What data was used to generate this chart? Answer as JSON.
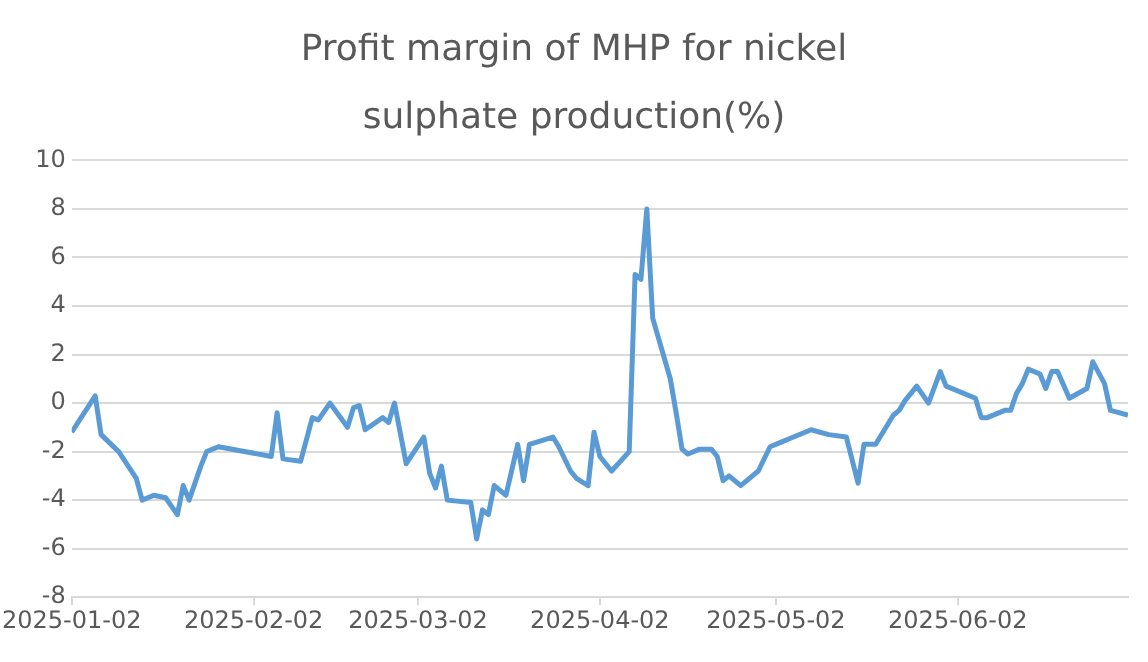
{
  "chart_data": {
    "type": "line",
    "title": "Profit margin of MHP for nickel sulphate production(%)",
    "x": [
      "2025-01-02",
      "2025-01-06",
      "2025-01-07",
      "2025-01-10",
      "2025-01-13",
      "2025-01-14",
      "2025-01-16",
      "2025-01-18",
      "2025-01-20",
      "2025-01-21",
      "2025-01-22",
      "2025-01-24",
      "2025-01-25",
      "2025-01-27",
      "2025-02-05",
      "2025-02-06",
      "2025-02-07",
      "2025-02-10",
      "2025-02-12",
      "2025-02-13",
      "2025-02-15",
      "2025-02-18",
      "2025-02-19",
      "2025-02-20",
      "2025-02-21",
      "2025-02-24",
      "2025-02-25",
      "2025-02-26",
      "2025-02-28",
      "2025-03-03",
      "2025-03-04",
      "2025-03-05",
      "2025-03-06",
      "2025-03-07",
      "2025-03-11",
      "2025-03-12",
      "2025-03-13",
      "2025-03-14",
      "2025-03-15",
      "2025-03-17",
      "2025-03-19",
      "2025-03-20",
      "2025-03-21",
      "2025-03-25",
      "2025-03-26",
      "2025-03-28",
      "2025-03-29",
      "2025-03-31",
      "2025-04-01",
      "2025-04-02",
      "2025-04-04",
      "2025-04-07",
      "2025-04-08",
      "2025-04-09",
      "2025-04-10",
      "2025-04-11",
      "2025-04-14",
      "2025-04-15",
      "2025-04-16",
      "2025-04-17",
      "2025-04-19",
      "2025-04-21",
      "2025-04-22",
      "2025-04-23",
      "2025-04-24",
      "2025-04-26",
      "2025-04-29",
      "2025-05-01",
      "2025-05-03",
      "2025-05-05",
      "2025-05-08",
      "2025-05-11",
      "2025-05-14",
      "2025-05-16",
      "2025-05-17",
      "2025-05-19",
      "2025-05-22",
      "2025-05-23",
      "2025-05-24",
      "2025-05-26",
      "2025-05-28",
      "2025-05-30",
      "2025-05-31",
      "2025-06-05",
      "2025-06-06",
      "2025-06-07",
      "2025-06-10",
      "2025-06-11",
      "2025-06-12",
      "2025-06-13",
      "2025-06-14",
      "2025-06-16",
      "2025-06-17",
      "2025-06-18",
      "2025-06-19",
      "2025-06-21",
      "2025-06-24",
      "2025-06-25",
      "2025-06-27",
      "2025-06-28",
      "2025-07-01"
    ],
    "series": [
      {
        "color": "#5b9bd5",
        "values": [
          -1.2,
          0.3,
          -1.3,
          -2.0,
          -3.1,
          -4.0,
          -3.8,
          -3.9,
          -4.6,
          -3.4,
          -4.0,
          -2.6,
          -2.0,
          -1.8,
          -2.2,
          -0.4,
          -2.3,
          -2.4,
          -0.6,
          -0.7,
          0.0,
          -1.0,
          -0.2,
          -0.1,
          -1.1,
          -0.6,
          -0.8,
          0.0,
          -2.5,
          -1.4,
          -2.9,
          -3.5,
          -2.6,
          -4.0,
          -4.1,
          -5.6,
          -4.4,
          -4.6,
          -3.4,
          -3.8,
          -1.7,
          -3.2,
          -1.7,
          -1.4,
          -1.8,
          -2.8,
          -3.1,
          -3.4,
          -1.2,
          -2.2,
          -2.8,
          -2.0,
          5.3,
          5.1,
          8.0,
          3.5,
          1.0,
          -0.4,
          -1.9,
          -2.1,
          -1.9,
          -1.9,
          -2.2,
          -3.2,
          -3.0,
          -3.4,
          -2.8,
          -1.8,
          -1.6,
          -1.4,
          -1.1,
          -1.3,
          -1.4,
          -3.3,
          -1.7,
          -1.7,
          -0.5,
          -0.3,
          0.1,
          0.7,
          0.0,
          1.3,
          0.7,
          0.2,
          -0.6,
          -0.6,
          -0.3,
          -0.3,
          0.4,
          0.8,
          1.4,
          1.2,
          0.6,
          1.3,
          1.3,
          0.2,
          0.6,
          1.7,
          0.8,
          -0.3,
          -0.5
        ]
      }
    ],
    "xlim": [
      "2025-01-02",
      "2025-07-01"
    ],
    "xticks": [
      "2025-01-02",
      "2025-02-02",
      "2025-03-02",
      "2025-04-02",
      "2025-05-02",
      "2025-06-02"
    ],
    "ylim": [
      -8,
      10
    ],
    "yticks": [
      -8,
      -6,
      -4,
      -2,
      0,
      2,
      4,
      6,
      8,
      10
    ],
    "grid": "y",
    "legend": false,
    "marker": "none",
    "line_style": "solid"
  }
}
